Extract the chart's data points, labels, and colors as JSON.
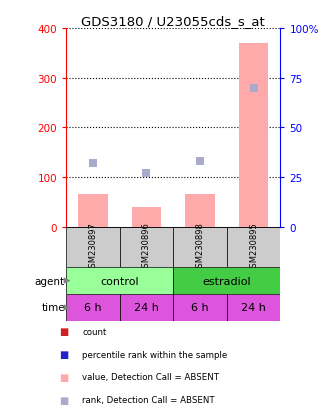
{
  "title": "GDS3180 / U23055cds_s_at",
  "samples": [
    "GSM230897",
    "GSM230896",
    "GSM230898",
    "GSM230895"
  ],
  "bar_values": [
    65,
    40,
    65,
    370
  ],
  "rank_values": [
    32,
    27,
    33,
    70
  ],
  "ylim_left": [
    0,
    400
  ],
  "ylim_right": [
    0,
    100
  ],
  "yticks_left": [
    0,
    100,
    200,
    300,
    400
  ],
  "yticks_right": [
    0,
    25,
    50,
    75,
    100
  ],
  "yticklabels_right": [
    "0",
    "25",
    "50",
    "75",
    "100%"
  ],
  "time_labels": [
    "6 h",
    "24 h",
    "6 h",
    "24 h"
  ],
  "bar_color": "#ffaaaa",
  "dot_color": "#aaaacc",
  "gsm_row_color": "#cccccc",
  "agent_control_color": "#99ff99",
  "agent_estradiol_color": "#44cc44",
  "time_color": "#dd55dd",
  "legend_colors": [
    "#cc2222",
    "#2222cc",
    "#ffaaaa",
    "#aaaacc"
  ],
  "legend_labels": [
    "count",
    "percentile rank within the sample",
    "value, Detection Call = ABSENT",
    "rank, Detection Call = ABSENT"
  ]
}
